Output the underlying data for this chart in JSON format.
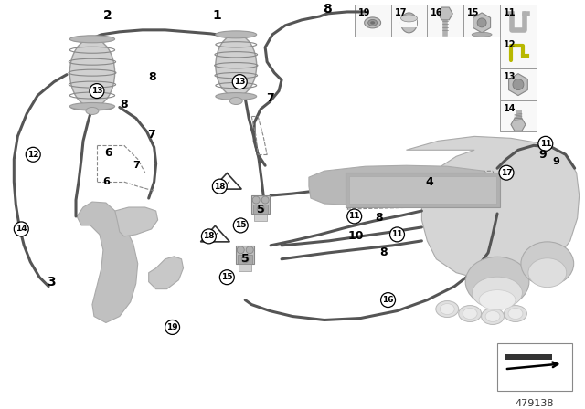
{
  "bg_color": "#ffffff",
  "diagram_number": "479138",
  "line_color": "#555555",
  "line_color_dark": "#333333",
  "line_width": 2.2,
  "part_fill": "#b8b8b8",
  "part_edge": "#888888",
  "fig_width": 6.4,
  "fig_height": 4.48,
  "dpi": 100,
  "legend_cells_row1": [
    "19",
    "17",
    "16",
    "15",
    "11"
  ],
  "legend_cells_col": [
    "12",
    "13",
    "14"
  ]
}
